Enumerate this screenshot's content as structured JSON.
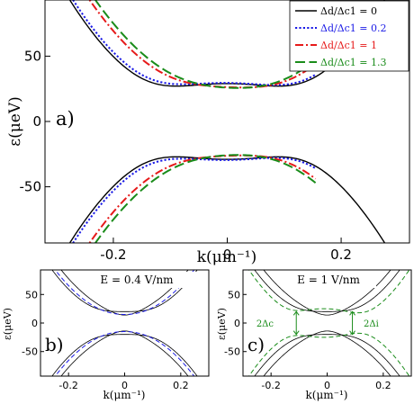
{
  "chart_data": [
    {
      "type": "line",
      "panel_label": "a)",
      "xlabel": "k(μm⁻¹)",
      "ylabel": "ε(μeV)",
      "xlim": [
        -0.32,
        0.32
      ],
      "ylim": [
        -93,
        93
      ],
      "xticks": [
        -0.2,
        0,
        0.2
      ],
      "xtick_labels": [
        "-0.2",
        "0",
        "0.2"
      ],
      "yticks": [
        -50,
        0,
        50
      ],
      "ytick_labels": [
        "-50",
        "0",
        "50"
      ],
      "legend_position": "top-right",
      "series": [
        {
          "name": "Δd/Δc1 = 0",
          "color": "#000000",
          "style": "solid",
          "delta": 0,
          "x_range": [
            -0.32,
            0.32
          ]
        },
        {
          "name": "Δd/Δc1 = 0.2",
          "color": "#1a1ae6",
          "style": "dotted",
          "delta": 0.2,
          "x_range": [
            -0.32,
            0.155
          ]
        },
        {
          "name": "Δd/Δc1 = 1",
          "color": "#e61a1a",
          "style": "dashdot",
          "delta": 1,
          "x_range": [
            -0.32,
            0.155
          ]
        },
        {
          "name": "Δd/Δc1 = 1.3",
          "color": "#1a8c1a",
          "style": "dashed",
          "delta": 1.3,
          "x_range": [
            -0.32,
            0.155
          ]
        }
      ]
    },
    {
      "type": "line",
      "panel_label": "b)",
      "annotation": "E = 0.4 V/nm",
      "xlabel": "k(μm⁻¹)",
      "ylabel": "ε(μeV)",
      "xlim": [
        -0.3,
        0.3
      ],
      "ylim": [
        -93,
        93
      ],
      "xtick_labels": [
        "-0.2",
        "0",
        "0.2"
      ],
      "ytick_labels": [
        "-50",
        "0",
        "50"
      ],
      "series": [
        {
          "color": "#000000",
          "style": "solid"
        },
        {
          "color": "#1a1ae6",
          "style": "dashed"
        }
      ]
    },
    {
      "type": "line",
      "panel_label": "c)",
      "annotation": "E = 1 V/nm",
      "gap_label_left": "2Δc",
      "gap_label_right": "2Δi",
      "xlabel": "k(μm⁻¹)",
      "ylabel": "ε(μeV)",
      "xlim": [
        -0.3,
        0.3
      ],
      "ylim": [
        -93,
        93
      ],
      "xtick_labels": [
        "-0.2",
        "0",
        "0.2"
      ],
      "ytick_labels": [
        "-50",
        "0",
        "50"
      ],
      "series": [
        {
          "color": "#000000",
          "style": "solid"
        },
        {
          "color": "#1a8c1a",
          "style": "dashed"
        }
      ]
    }
  ]
}
